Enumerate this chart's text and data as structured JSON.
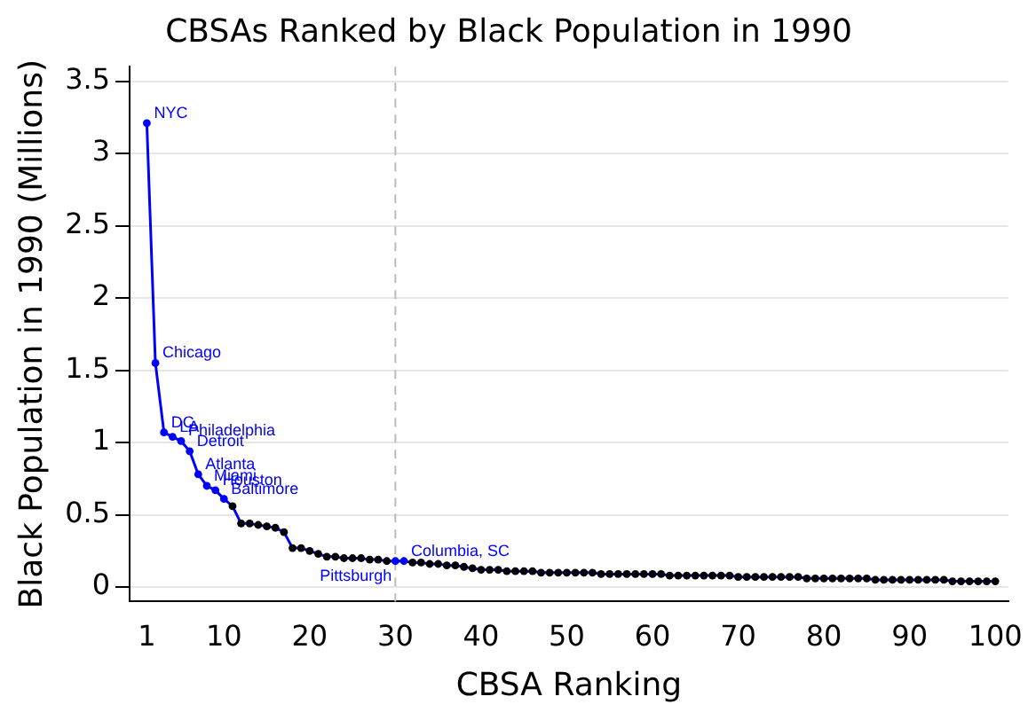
{
  "chart_data": {
    "type": "line",
    "title": "CBSAs Ranked by Black Population in 1990",
    "xlabel": "CBSA Ranking",
    "ylabel": "Black Population in 1990 (Millions)",
    "x": [
      1,
      2,
      3,
      4,
      5,
      6,
      7,
      8,
      9,
      10,
      11,
      12,
      13,
      14,
      15,
      16,
      17,
      18,
      19,
      20,
      21,
      22,
      23,
      24,
      25,
      26,
      27,
      28,
      29,
      30,
      31,
      32,
      33,
      34,
      35,
      36,
      37,
      38,
      39,
      40,
      41,
      42,
      43,
      44,
      45,
      46,
      47,
      48,
      49,
      50,
      51,
      52,
      53,
      54,
      55,
      56,
      57,
      58,
      59,
      60,
      61,
      62,
      63,
      64,
      65,
      66,
      67,
      68,
      69,
      70,
      71,
      72,
      73,
      74,
      75,
      76,
      77,
      78,
      79,
      80,
      81,
      82,
      83,
      84,
      85,
      86,
      87,
      88,
      89,
      90,
      91,
      92,
      93,
      94,
      95,
      96,
      97,
      98,
      99,
      100
    ],
    "series": [
      {
        "color": "#0000ff",
        "colors": [
          "#0000ff",
          "#0000ff",
          "#0000ff",
          "#0000ff",
          "#0000ff",
          "#0000ff",
          "#0000ff",
          "#0000ff",
          "#0000ff",
          "#0000ff",
          "#000000",
          "#000000",
          "#000000",
          "#000000",
          "#000000",
          "#000000",
          "#000000",
          "#000000",
          "#000000",
          "#000000",
          "#000000",
          "#000000",
          "#000000",
          "#000000",
          "#000000",
          "#000000",
          "#000000",
          "#000000",
          "#000000",
          "#0000ff",
          "#0000ff",
          "#000000",
          "#000000",
          "#000000",
          "#000000",
          "#000000",
          "#000000",
          "#000000",
          "#000000",
          "#000000",
          "#000000",
          "#000000",
          "#000000",
          "#000000",
          "#000000",
          "#000000",
          "#000000",
          "#000000",
          "#000000",
          "#000000",
          "#000000",
          "#000000",
          "#000000",
          "#000000",
          "#000000",
          "#000000",
          "#000000",
          "#000000",
          "#000000",
          "#000000",
          "#000000",
          "#000000",
          "#000000",
          "#000000",
          "#000000",
          "#000000",
          "#000000",
          "#000000",
          "#000000",
          "#000000",
          "#000000",
          "#000000",
          "#000000",
          "#000000",
          "#000000",
          "#000000",
          "#000000",
          "#000000",
          "#000000",
          "#000000",
          "#000000",
          "#000000",
          "#000000",
          "#000000",
          "#000000",
          "#000000",
          "#000000",
          "#000000",
          "#000000",
          "#000000",
          "#000000",
          "#000000",
          "#000000",
          "#000000",
          "#000000",
          "#000000",
          "#000000",
          "#000000",
          "#000000",
          "#000000"
        ],
        "values": [
          3.21,
          1.55,
          1.07,
          1.04,
          1.01,
          0.94,
          0.78,
          0.7,
          0.67,
          0.61,
          0.56,
          0.44,
          0.44,
          0.43,
          0.42,
          0.41,
          0.38,
          0.27,
          0.27,
          0.25,
          0.23,
          0.21,
          0.21,
          0.2,
          0.2,
          0.2,
          0.19,
          0.19,
          0.18,
          0.18,
          0.18,
          0.17,
          0.17,
          0.16,
          0.16,
          0.15,
          0.15,
          0.14,
          0.13,
          0.12,
          0.12,
          0.12,
          0.11,
          0.11,
          0.11,
          0.11,
          0.1,
          0.1,
          0.1,
          0.1,
          0.1,
          0.1,
          0.1,
          0.09,
          0.09,
          0.09,
          0.09,
          0.09,
          0.09,
          0.09,
          0.09,
          0.08,
          0.08,
          0.08,
          0.08,
          0.08,
          0.08,
          0.08,
          0.08,
          0.07,
          0.07,
          0.07,
          0.07,
          0.07,
          0.07,
          0.07,
          0.07,
          0.06,
          0.06,
          0.06,
          0.06,
          0.06,
          0.06,
          0.06,
          0.06,
          0.05,
          0.05,
          0.05,
          0.05,
          0.05,
          0.05,
          0.05,
          0.05,
          0.05,
          0.04,
          0.04,
          0.04,
          0.04,
          0.04,
          0.04
        ]
      }
    ],
    "xlim": [
      -1,
      101.5
    ],
    "xticks": [
      1,
      10,
      20,
      30,
      40,
      50,
      60,
      70,
      80,
      90,
      100
    ],
    "ylim": [
      -0.1,
      3.6
    ],
    "yticks": [
      0,
      0.5,
      1,
      1.5,
      2,
      2.5,
      3,
      3.5
    ],
    "grid": "y",
    "legend": false,
    "marker": "circle",
    "line_style": "solid",
    "ref_lines": [
      {
        "axis": "x",
        "value": 30,
        "color": "#bbbbbb",
        "line_style": "dashed"
      }
    ],
    "annotations": [
      {
        "text": "NYC",
        "x": 1,
        "y": 3.21
      },
      {
        "text": "Chicago",
        "x": 2,
        "y": 1.55
      },
      {
        "text": "DC",
        "x": 3,
        "y": 1.07
      },
      {
        "text": "LA",
        "x": 4,
        "y": 1.04
      },
      {
        "text": "Philadelphia",
        "x": 5,
        "y": 1.01
      },
      {
        "text": "Detroit",
        "x": 6,
        "y": 0.94
      },
      {
        "text": "Atlanta",
        "x": 7,
        "y": 0.78
      },
      {
        "text": "Miami",
        "x": 8,
        "y": 0.7
      },
      {
        "text": "Houston",
        "x": 9,
        "y": 0.67
      },
      {
        "text": "Baltimore",
        "x": 10,
        "y": 0.61
      },
      {
        "text": "Pittsburgh",
        "x": 30,
        "y": 0.18
      },
      {
        "text": "Columbia, SC",
        "x": 31,
        "y": 0.18
      }
    ]
  }
}
